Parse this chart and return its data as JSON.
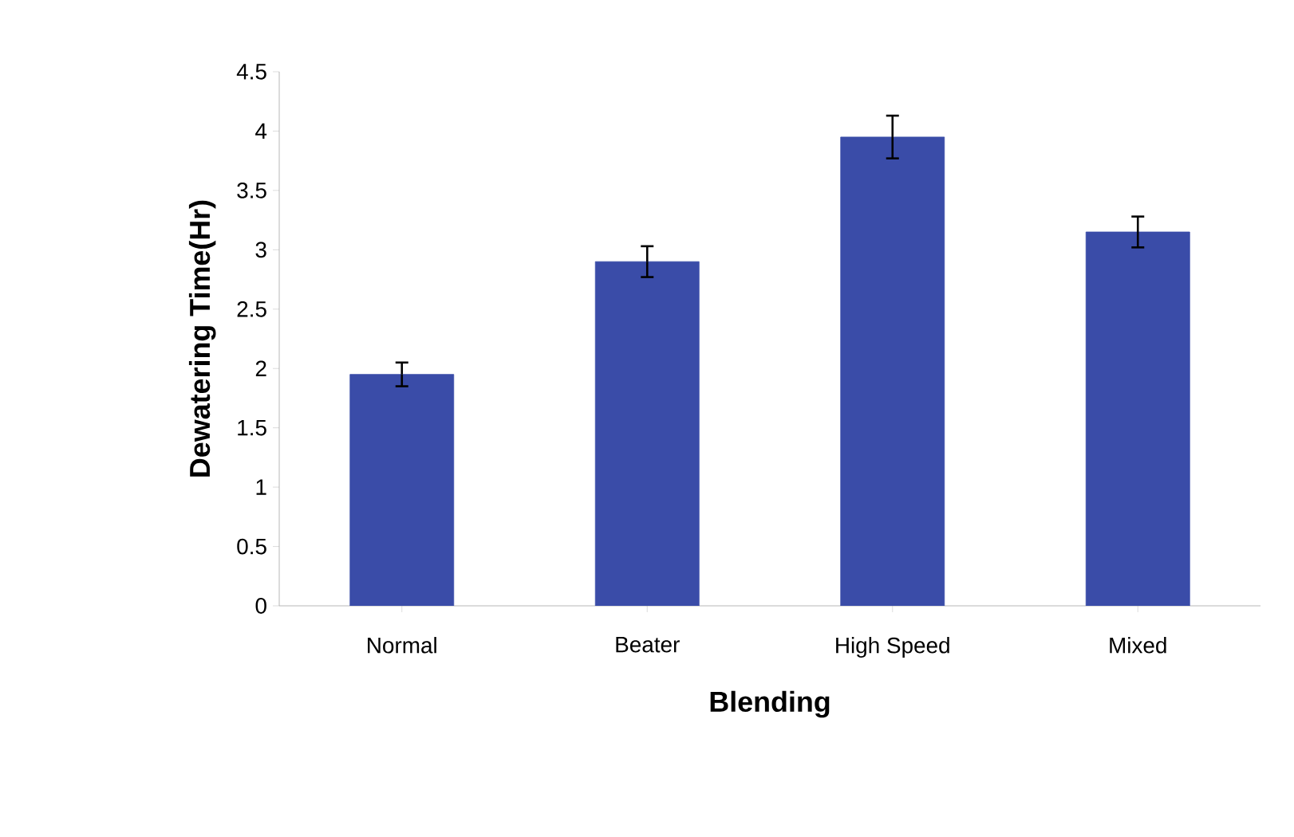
{
  "chart_data": {
    "type": "bar",
    "xlabel": "Blending",
    "ylabel": "Dewatering Time(Hr)",
    "categories": [
      "Normal",
      "Beater",
      "High Speed",
      "Mixed"
    ],
    "values": [
      1.95,
      2.9,
      3.95,
      3.15
    ],
    "errors": [
      0.1,
      0.13,
      0.18,
      0.13
    ],
    "color": "#3a4ca8",
    "ylim": [
      0,
      4.5
    ],
    "yticks": [
      0,
      0.5,
      1,
      1.5,
      2,
      2.5,
      3,
      3.5,
      4,
      4.5
    ],
    "grid": false
  }
}
